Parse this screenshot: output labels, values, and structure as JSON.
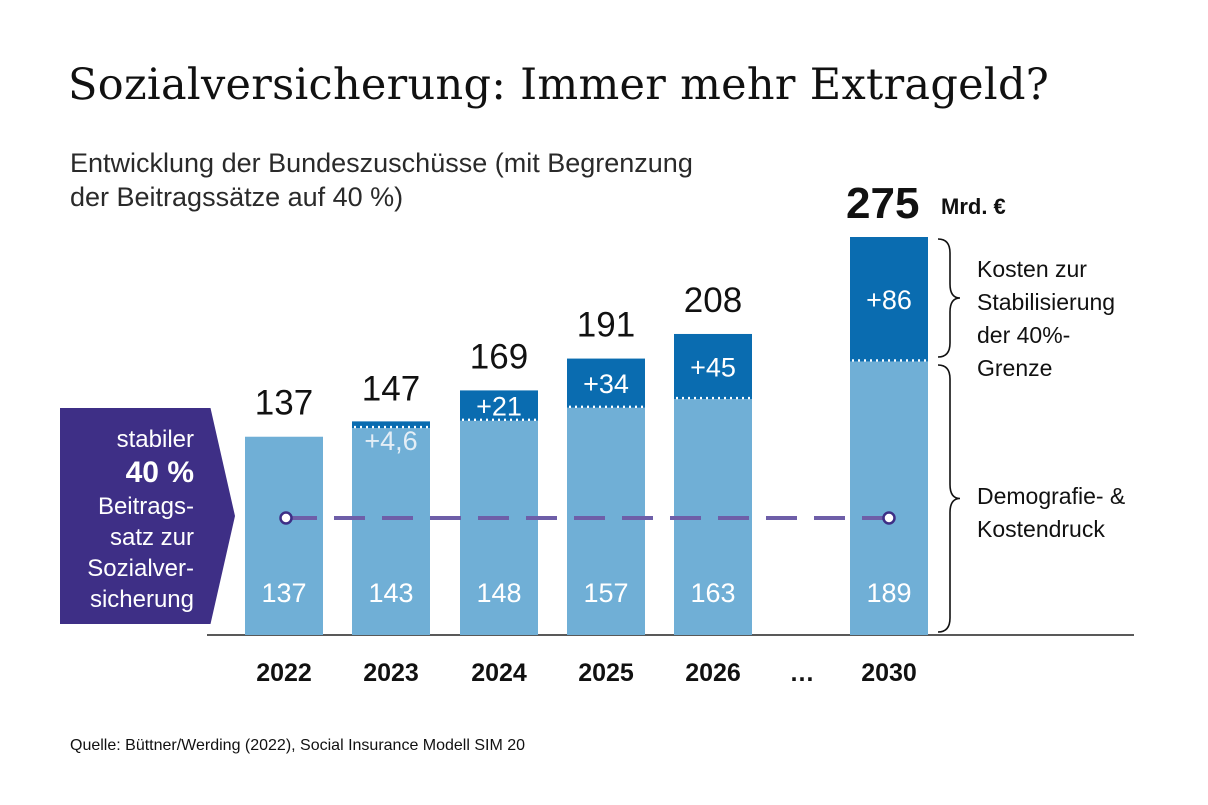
{
  "title": "Sozialversicherung: Immer mehr Extrageld?",
  "subtitle_lines": [
    "Entwicklung der Bundeszuschüsse (mit Begrenzung",
    "der Beitragssätze auf 40 %)"
  ],
  "source": "Quelle: Büttner/Werding (2022), Social Insurance Modell SIM 20",
  "badge": {
    "line1": "stabiler",
    "line2": "40 %",
    "line3": "Beitrags-",
    "line4": "satz zur",
    "line5": "Sozialver-",
    "line6": "sicherung"
  },
  "colors": {
    "base": "#70afd6",
    "extra": "#0a6cb0",
    "badge": "#3e2f86",
    "dash": "#6e5ea8"
  },
  "chart_data": {
    "type": "bar",
    "stacked": true,
    "categories": [
      "2022",
      "2023",
      "2024",
      "2025",
      "2026",
      "…",
      "2030"
    ],
    "series": [
      {
        "values": [
          137,
          143,
          148,
          157,
          163,
          null,
          189
        ],
        "labels": [
          "137",
          "143",
          "148",
          "157",
          "163",
          "",
          "189"
        ]
      },
      {
        "values": [
          0,
          4.6,
          21,
          34,
          45,
          null,
          86
        ],
        "labels": [
          "",
          "+4,6",
          "+21",
          "+34",
          "+45",
          "",
          "+86"
        ]
      }
    ],
    "totals": [
      137,
      147,
      169,
      191,
      208,
      null,
      275
    ],
    "total_labels": [
      "137",
      "147",
      "169",
      "191",
      "208",
      "",
      "275"
    ],
    "highlight_unit": "Mrd. €",
    "brace_labels": {
      "top": [
        "Kosten zur",
        "Stabilisierung",
        "der 40%-",
        "Grenze"
      ],
      "bottom": [
        "Demografie- &",
        "Kostendruck"
      ]
    },
    "ylim": [
      0,
      275
    ]
  }
}
